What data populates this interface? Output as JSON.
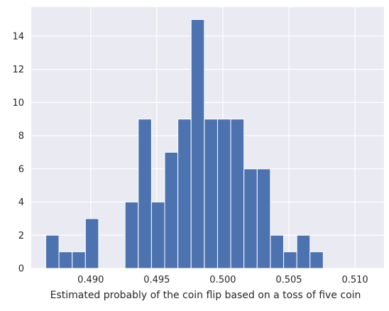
{
  "chart_data": {
    "type": "bar",
    "subtype": "histogram",
    "title": "",
    "xlabel": "Estimated probably of the coin flip based on a toss of five coin",
    "ylabel": "",
    "bins": [
      {
        "x0": 0.4866,
        "x1": 0.4876,
        "count": 2
      },
      {
        "x0": 0.4876,
        "x1": 0.4886,
        "count": 1
      },
      {
        "x0": 0.4886,
        "x1": 0.4896,
        "count": 1
      },
      {
        "x0": 0.4896,
        "x1": 0.4906,
        "count": 3
      },
      {
        "x0": 0.4906,
        "x1": 0.4916,
        "count": 0
      },
      {
        "x0": 0.4916,
        "x1": 0.4926,
        "count": 0
      },
      {
        "x0": 0.4926,
        "x1": 0.4936,
        "count": 4
      },
      {
        "x0": 0.4936,
        "x1": 0.4946,
        "count": 9
      },
      {
        "x0": 0.4946,
        "x1": 0.4956,
        "count": 4
      },
      {
        "x0": 0.4956,
        "x1": 0.4966,
        "count": 7
      },
      {
        "x0": 0.4966,
        "x1": 0.4976,
        "count": 9
      },
      {
        "x0": 0.4976,
        "x1": 0.4986,
        "count": 15
      },
      {
        "x0": 0.4986,
        "x1": 0.4996,
        "count": 9
      },
      {
        "x0": 0.4996,
        "x1": 0.5006,
        "count": 9
      },
      {
        "x0": 0.5006,
        "x1": 0.5016,
        "count": 9
      },
      {
        "x0": 0.5016,
        "x1": 0.5026,
        "count": 6
      },
      {
        "x0": 0.5026,
        "x1": 0.5036,
        "count": 6
      },
      {
        "x0": 0.5036,
        "x1": 0.5046,
        "count": 2
      },
      {
        "x0": 0.5046,
        "x1": 0.5056,
        "count": 1
      },
      {
        "x0": 0.5056,
        "x1": 0.5066,
        "count": 2
      },
      {
        "x0": 0.5066,
        "x1": 0.5076,
        "count": 1
      }
    ],
    "xticks": [
      "0.490",
      "0.495",
      "0.500",
      "0.505",
      "0.510"
    ],
    "yticks": [
      "0",
      "2",
      "4",
      "6",
      "8",
      "10",
      "12",
      "14"
    ],
    "xlim": [
      0.4855,
      0.5122
    ],
    "ylim": [
      0,
      15.75
    ],
    "grid": true,
    "bar_color": "#4c72b0",
    "background_color": "#eaeaf2",
    "grid_color": "#ffffff"
  }
}
